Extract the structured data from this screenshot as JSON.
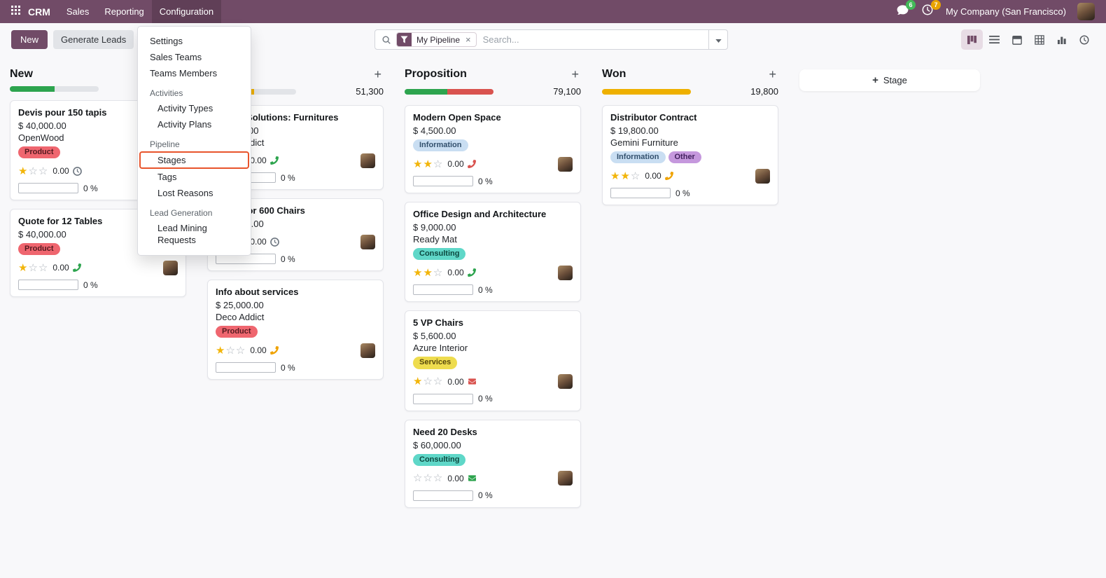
{
  "navbar": {
    "app_name": "CRM",
    "menus": [
      {
        "label": "Sales",
        "active": false
      },
      {
        "label": "Reporting",
        "active": false
      },
      {
        "label": "Configuration",
        "active": true
      }
    ],
    "messages_badge": "6",
    "activities_badge": "7",
    "company_switcher": "My Company (San Francisco)",
    "accent_color": "#714B67"
  },
  "control_panel": {
    "new_button": "New",
    "generate_leads_button": "Generate Leads",
    "breadcrumb": "Pipeline",
    "search": {
      "facet_label": "My Pipeline",
      "facet_remove": "×",
      "placeholder": "Search..."
    },
    "view_switcher": {
      "active": "kanban",
      "views": [
        "kanban",
        "list",
        "calendar",
        "pivot",
        "graph",
        "activity"
      ]
    }
  },
  "config_menu": {
    "highlight_color": "#e8542c",
    "items": [
      {
        "label": "Settings",
        "type": "item",
        "highlighted": false
      },
      {
        "label": "Sales Teams",
        "type": "item",
        "highlighted": false
      },
      {
        "label": "Teams Members",
        "type": "item",
        "highlighted": false
      },
      {
        "label": "Activities",
        "type": "section",
        "highlighted": false
      },
      {
        "label": "Activity Types",
        "type": "subitem",
        "highlighted": false
      },
      {
        "label": "Activity Plans",
        "type": "subitem",
        "highlighted": false
      },
      {
        "label": "Pipeline",
        "type": "section",
        "highlighted": false
      },
      {
        "label": "Stages",
        "type": "subitem",
        "highlighted": true
      },
      {
        "label": "Tags",
        "type": "subitem",
        "highlighted": false
      },
      {
        "label": "Lost Reasons",
        "type": "subitem",
        "highlighted": false
      },
      {
        "label": "Lead Generation",
        "type": "section",
        "highlighted": false
      },
      {
        "label": "Lead Mining Requests",
        "type": "subitem",
        "highlighted": false
      }
    ]
  },
  "board": {
    "add_stage_label": "Stage",
    "columns": [
      {
        "title": "New",
        "total": "",
        "progress": [
          {
            "color": "#2da44e",
            "pct": 50
          }
        ],
        "cards": [
          {
            "title": "Devis pour 150 tapis",
            "amount": "$ 40,000.00",
            "company": "OpenWood",
            "tags": [
              {
                "label": "Product",
                "bg": "#ef666f",
                "fg": "#541a20"
              }
            ],
            "stars": 1,
            "activity_value": "0.00",
            "activity_icon": "clock-icon",
            "activity_color": "#6e7781",
            "avatar": false,
            "progress_label": "0 %"
          },
          {
            "title": "Quote for 12 Tables",
            "amount": "$ 40,000.00",
            "company": "",
            "tags": [
              {
                "label": "Product",
                "bg": "#ef666f",
                "fg": "#541a20"
              }
            ],
            "stars": 1,
            "activity_value": "0.00",
            "activity_icon": "phone-icon",
            "activity_color": "#2da44e",
            "avatar": true,
            "progress_label": "0 %"
          }
        ]
      },
      {
        "title": "",
        "total": "51,300",
        "progress": [
          {
            "color": "#eeb000",
            "pct": 53
          }
        ],
        "cards": [
          {
            "title": "Global Solutions: Furnitures",
            "amount": "$ 3,800.00",
            "company": "Deco Addict",
            "tags": [],
            "stars": 1,
            "activity_value": "0.00",
            "activity_icon": "phone-icon",
            "activity_color": "#2da44e",
            "avatar": true,
            "progress_label": "0 %"
          },
          {
            "title": "Quote for 600 Chairs",
            "amount": "$ 22,500.00",
            "company": "",
            "tags": [],
            "stars": 1,
            "activity_value": "0.00",
            "activity_icon": "clock-icon",
            "activity_color": "#6e7781",
            "avatar": true,
            "progress_label": "0 %"
          },
          {
            "title": "Info about services",
            "amount": "$ 25,000.00",
            "company": "Deco Addict",
            "tags": [
              {
                "label": "Product",
                "bg": "#ef666f",
                "fg": "#541a20"
              }
            ],
            "stars": 1,
            "activity_value": "0.00",
            "activity_icon": "phone-icon",
            "activity_color": "#efa200",
            "avatar": true,
            "progress_label": "0 %"
          }
        ]
      },
      {
        "title": "Proposition",
        "total": "79,100",
        "progress": [
          {
            "color": "#2da44e",
            "pct": 48
          },
          {
            "color": "#d9534f",
            "pct": 52
          }
        ],
        "cards": [
          {
            "title": "Modern Open Space",
            "amount": "$ 4,500.00",
            "company": "",
            "tags": [
              {
                "label": "Information",
                "bg": "#c9def2",
                "fg": "#32506d"
              }
            ],
            "stars": 2,
            "activity_value": "0.00",
            "activity_icon": "phone-icon",
            "activity_color": "#d9534f",
            "avatar": true,
            "progress_label": "0 %"
          },
          {
            "title": "Office Design and Architecture",
            "amount": "$ 9,000.00",
            "company": "Ready Mat",
            "tags": [
              {
                "label": "Consulting",
                "bg": "#5fd7c8",
                "fg": "#0c473f"
              }
            ],
            "stars": 2,
            "activity_value": "0.00",
            "activity_icon": "phone-icon",
            "activity_color": "#2da44e",
            "avatar": true,
            "progress_label": "0 %"
          },
          {
            "title": "5 VP Chairs",
            "amount": "$ 5,600.00",
            "company": "Azure Interior",
            "tags": [
              {
                "label": "Services",
                "bg": "#eedc4e",
                "fg": "#57490c"
              }
            ],
            "stars": 1,
            "activity_value": "0.00",
            "activity_icon": "envelope-icon",
            "activity_color": "#d9534f",
            "avatar": true,
            "progress_label": "0 %"
          },
          {
            "title": "Need 20 Desks",
            "amount": "$ 60,000.00",
            "company": "",
            "tags": [
              {
                "label": "Consulting",
                "bg": "#5fd7c8",
                "fg": "#0c473f"
              }
            ],
            "stars": 0,
            "activity_value": "0.00",
            "activity_icon": "envelope-icon",
            "activity_color": "#2da44e",
            "avatar": true,
            "progress_label": "0 %"
          }
        ]
      },
      {
        "title": "Won",
        "total": "19,800",
        "progress": [
          {
            "color": "#eeb000",
            "pct": 100
          }
        ],
        "cards": [
          {
            "title": "Distributor Contract",
            "amount": "$ 19,800.00",
            "company": "Gemini Furniture",
            "tags": [
              {
                "label": "Information",
                "bg": "#c9def2",
                "fg": "#32506d"
              },
              {
                "label": "Other",
                "bg": "#c598dd",
                "fg": "#43215f"
              }
            ],
            "stars": 2,
            "activity_value": "0.00",
            "activity_icon": "phone-icon",
            "activity_color": "#efa200",
            "avatar": true,
            "progress_label": "0 %"
          }
        ]
      }
    ]
  }
}
